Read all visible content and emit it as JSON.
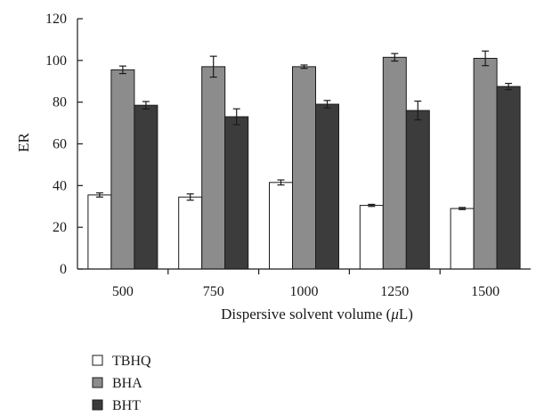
{
  "chart_data": {
    "type": "bar",
    "title": "",
    "xlabel": "Dispersive solvent volume (",
    "xlabel_unit": "μ",
    "xlabel_suffix": "L)",
    "ylabel": "ER",
    "ylim": [
      0,
      120
    ],
    "yticks": [
      0,
      20,
      40,
      60,
      80,
      100,
      120
    ],
    "categories": [
      "500",
      "750",
      "1000",
      "1250",
      "1500"
    ],
    "grid": false,
    "legend_position": "bottom-left",
    "series": [
      {
        "name": "TBHQ",
        "color": "#ffffff",
        "values": [
          35.5,
          34.5,
          41.5,
          30.5,
          29.0
        ],
        "errors": [
          1.0,
          1.5,
          1.2,
          0.5,
          0.5
        ]
      },
      {
        "name": "BHA",
        "color": "#8c8c8c",
        "values": [
          95.5,
          97.0,
          97.0,
          101.5,
          101.0
        ],
        "errors": [
          1.8,
          5.0,
          0.8,
          1.8,
          3.5
        ]
      },
      {
        "name": "BHT",
        "color": "#3c3c3c",
        "values": [
          78.5,
          73.0,
          79.0,
          76.0,
          87.5
        ],
        "errors": [
          1.8,
          3.8,
          1.8,
          4.5,
          1.5
        ]
      }
    ]
  }
}
